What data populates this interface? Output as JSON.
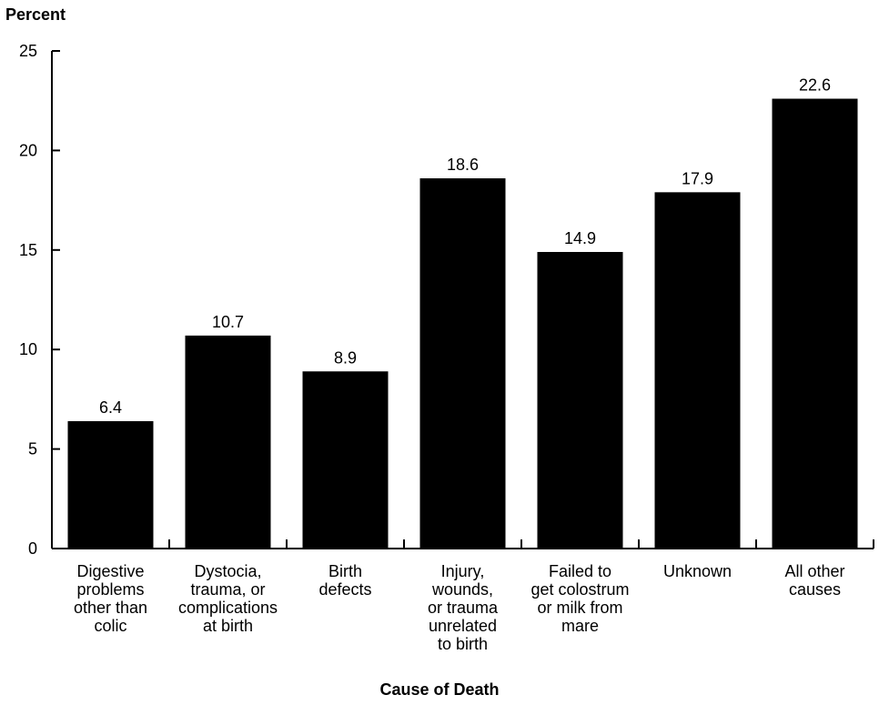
{
  "chart_data": {
    "type": "bar",
    "ylabel": "Percent",
    "xlabel": "Cause of Death",
    "ylim": [
      0,
      25
    ],
    "yticks": [
      0,
      5,
      10,
      15,
      20,
      25
    ],
    "categories": [
      "Digestive problems other than colic",
      "Dystocia, trauma, or complications at birth",
      "Birth defects",
      "Injury, wounds, or trauma unrelated to birth",
      "Failed to get colostrum or milk from mare",
      "Unknown",
      "All other causes"
    ],
    "category_lines": [
      [
        "Digestive",
        "problems",
        "other than",
        "colic"
      ],
      [
        "Dystocia,",
        "trauma, or",
        "complications",
        "at birth"
      ],
      [
        "Birth",
        "defects"
      ],
      [
        "Injury,",
        "wounds,",
        "or trauma",
        "unrelated",
        "to birth"
      ],
      [
        "Failed to",
        "get colostrum",
        "or milk from",
        "mare"
      ],
      [
        "Unknown"
      ],
      [
        "All other",
        "causes"
      ]
    ],
    "values": [
      6.4,
      10.7,
      8.9,
      18.6,
      14.9,
      17.9,
      22.6
    ],
    "value_labels": [
      "6.4",
      "10.7",
      "8.9",
      "18.6",
      "14.9",
      "17.9",
      "22.6"
    ],
    "bar_color": "#000000",
    "grid": false,
    "legend": "none"
  }
}
